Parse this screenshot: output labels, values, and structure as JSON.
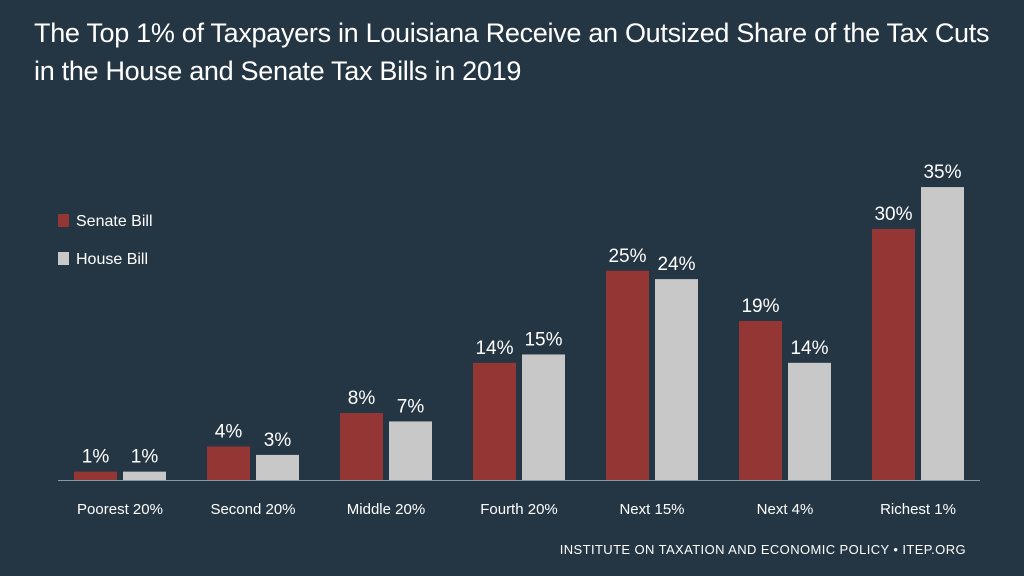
{
  "chart_data": {
    "type": "bar",
    "title": "The Top 1% of Taxpayers in Louisiana Receive an Outsized Share of the Tax Cuts in the House and Senate Tax Bills in 2019",
    "categories": [
      "Poorest 20%",
      "Second 20%",
      "Middle 20%",
      "Fourth 20%",
      "Next 15%",
      "Next 4%",
      "Richest 1%"
    ],
    "series": [
      {
        "name": "Senate Bill",
        "color": "#943634",
        "values": [
          1,
          4,
          8,
          14,
          25,
          19,
          30
        ],
        "labels": [
          "1%",
          "4%",
          "8%",
          "14%",
          "25%",
          "19%",
          "30%"
        ]
      },
      {
        "name": "House Bill",
        "color": "#c8c8c8",
        "values": [
          1,
          3,
          7,
          15,
          24,
          14,
          35
        ],
        "labels": [
          "1%",
          "3%",
          "7%",
          "15%",
          "24%",
          "14%",
          "35%"
        ]
      }
    ],
    "xlabel": "",
    "ylabel": "",
    "ylim": [
      0,
      35
    ],
    "grid": false,
    "legend_position": "top-left",
    "value_label_color": "#ffffff",
    "axis_line_color": "#8a96a0"
  },
  "source": "INSTITUTE ON TAXATION AND ECONOMIC POLICY • ITEP.ORG"
}
